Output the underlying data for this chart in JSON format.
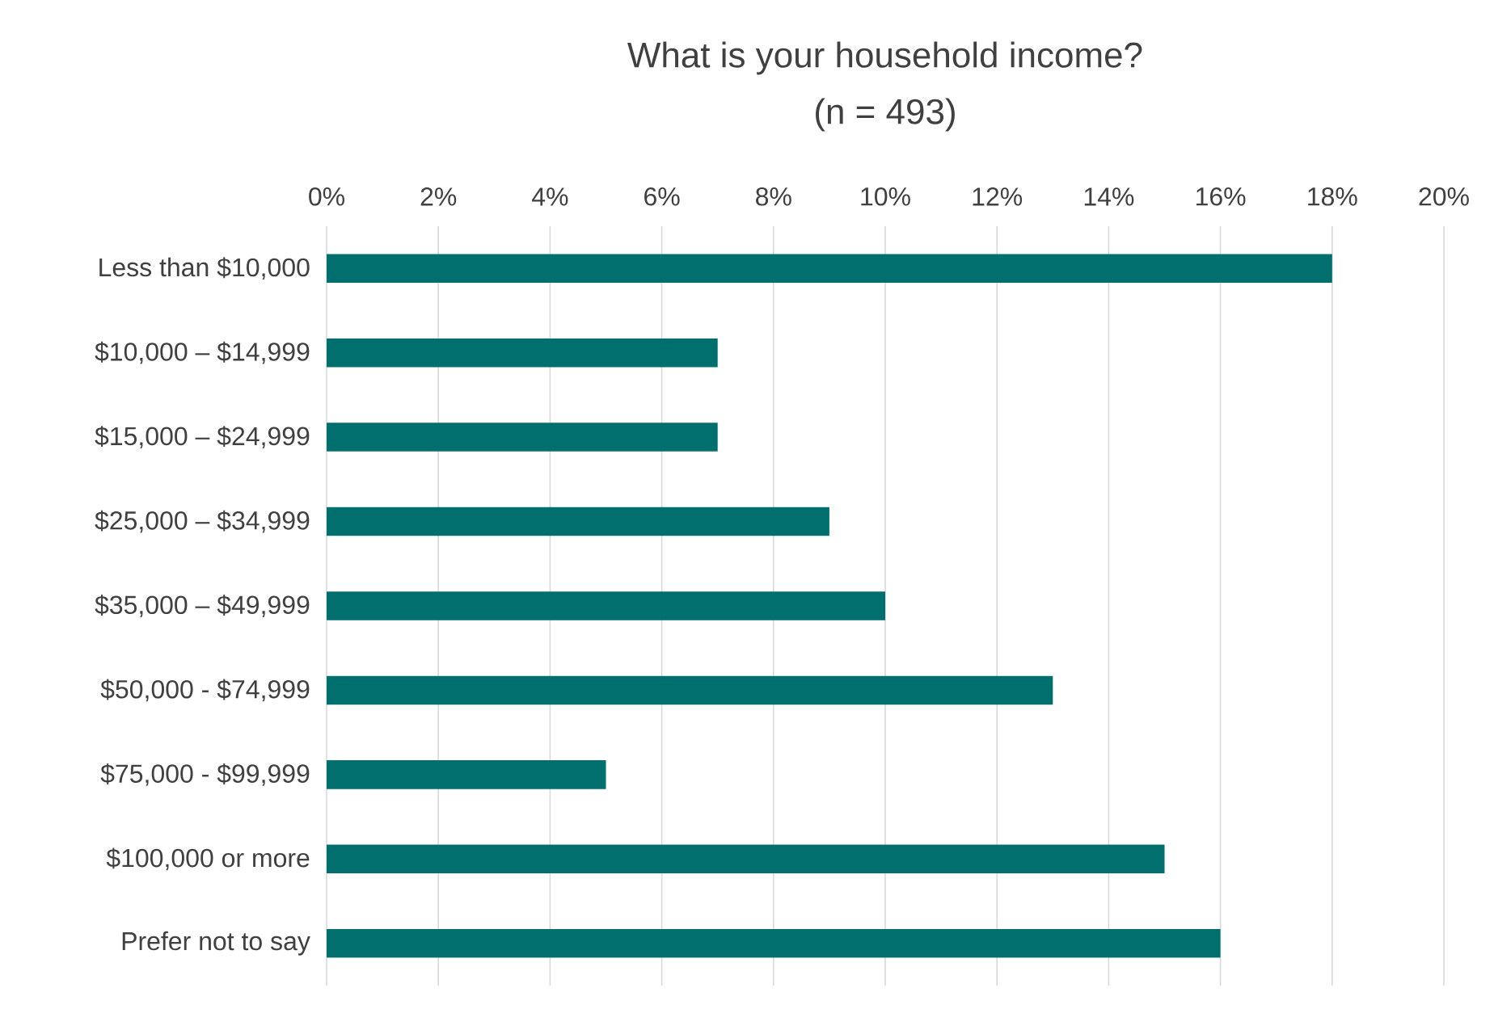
{
  "chart_data": {
    "type": "bar",
    "orientation": "horizontal",
    "title": "What is your household income?",
    "subtitle": "(n = 493)",
    "categories": [
      "Less than $10,000",
      "$10,000 – $14,999",
      "$15,000 – $24,999",
      "$25,000 – $34,999",
      "$35,000 – $49,999",
      "$50,000 - $74,999",
      "$75,000 - $99,999",
      "$100,000 or more",
      "Prefer not to say"
    ],
    "values": [
      18,
      7,
      7,
      9,
      10,
      13,
      5,
      15,
      16
    ],
    "color": "#006f6e",
    "xlim": [
      0,
      20
    ],
    "xticks": [
      {
        "value": 0,
        "label": "0%"
      },
      {
        "value": 2,
        "label": "2%"
      },
      {
        "value": 4,
        "label": "4%"
      },
      {
        "value": 6,
        "label": "6%"
      },
      {
        "value": 8,
        "label": "8%"
      },
      {
        "value": 10,
        "label": "10%"
      },
      {
        "value": 12,
        "label": "12%"
      },
      {
        "value": 14,
        "label": "14%"
      },
      {
        "value": 16,
        "label": "16%"
      },
      {
        "value": 18,
        "label": "18%"
      },
      {
        "value": 20,
        "label": "20%"
      }
    ],
    "grid": "x"
  }
}
